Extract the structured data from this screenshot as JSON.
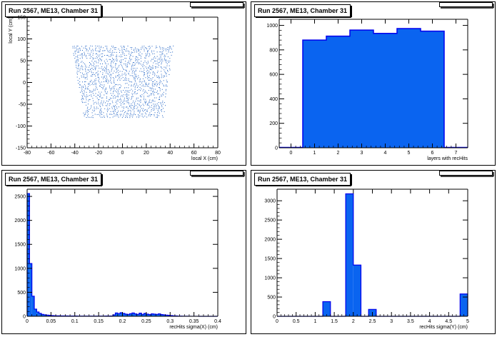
{
  "chart_data": [
    {
      "type": "scatter",
      "title": "Run 2567, ME13, Chamber 31",
      "xlabel": "local X (cm)",
      "ylabel": "local Y (cm)",
      "xlim": [
        -80,
        80
      ],
      "ylim": [
        -150,
        150
      ],
      "xticks": [
        -80,
        -60,
        -40,
        -20,
        0,
        20,
        40,
        60,
        80
      ],
      "yticks": [
        -150,
        -100,
        -50,
        0,
        50,
        100,
        150
      ],
      "color": "#1f62c4",
      "region": {
        "x_top": [
          -42,
          42
        ],
        "x_bottom": [
          -32,
          34
        ],
        "y": [
          -80,
          84
        ]
      }
    },
    {
      "type": "bar",
      "title": "Run 2567, ME13, Chamber 31",
      "xlabel": "layers with recHits",
      "ylabel": "",
      "xlim": [
        -0.5,
        7.5
      ],
      "ylim": [
        0,
        1050
      ],
      "xticks": [
        0,
        1,
        2,
        3,
        4,
        5,
        6,
        7
      ],
      "yticks": [
        0,
        200,
        400,
        600,
        800,
        1000
      ],
      "bin_edges": [
        0.5,
        1.5,
        2.5,
        3.5,
        4.5,
        5.5,
        6.5
      ],
      "values": [
        880,
        912,
        962,
        935,
        974,
        953
      ],
      "color": "#0a64f0"
    },
    {
      "type": "bar",
      "title": "Run 2567, ME13, Chamber 31",
      "xlabel": "recHits sigma(X) (cm)",
      "ylabel": "",
      "xlim": [
        0,
        0.4
      ],
      "ylim": [
        0,
        2650
      ],
      "xticks": [
        "0",
        "0.05",
        "0.1",
        "0.15",
        "0.2",
        "0.25",
        "0.3",
        "0.35",
        "0.4"
      ],
      "yticks": [
        0,
        500,
        1000,
        1500,
        2000,
        2500
      ],
      "bin_width": 0.005,
      "values": [
        2560,
        1100,
        420,
        150,
        90,
        60,
        40,
        30,
        25,
        20,
        15,
        12,
        10,
        10,
        8,
        8,
        8,
        6,
        6,
        6,
        6,
        5,
        5,
        5,
        5,
        5,
        5,
        5,
        5,
        5,
        5,
        5,
        5,
        6,
        6,
        6,
        30,
        70,
        55,
        75,
        60,
        45,
        40,
        55,
        70,
        50,
        40,
        65,
        40,
        60,
        45,
        35,
        50,
        45,
        40,
        50,
        35,
        30,
        25,
        20,
        15,
        10,
        8,
        5,
        4,
        3,
        2,
        2,
        1,
        1,
        1,
        1,
        0,
        0,
        0,
        0,
        0,
        0,
        0,
        0
      ],
      "color": "#0a64f0"
    },
    {
      "type": "bar",
      "title": "Run 2567, ME13, Chamber 31",
      "xlabel": "recHits sigma(Y) (cm)",
      "ylabel": "",
      "xlim": [
        0,
        5
      ],
      "ylim": [
        0,
        3300
      ],
      "xticks": [
        "0",
        "0.5",
        "1",
        "1.5",
        "2",
        "2.5",
        "3",
        "3.5",
        "4",
        "4.5",
        "5"
      ],
      "yticks": [
        0,
        500,
        1000,
        1500,
        2000,
        2500,
        3000
      ],
      "bin_width": 0.2,
      "values": [
        0,
        0,
        0,
        0,
        0,
        0,
        380,
        0,
        0,
        3180,
        1330,
        0,
        180,
        0,
        0,
        0,
        0,
        0,
        0,
        0,
        0,
        0,
        0,
        0,
        580
      ],
      "color": "#0a64f0"
    }
  ]
}
